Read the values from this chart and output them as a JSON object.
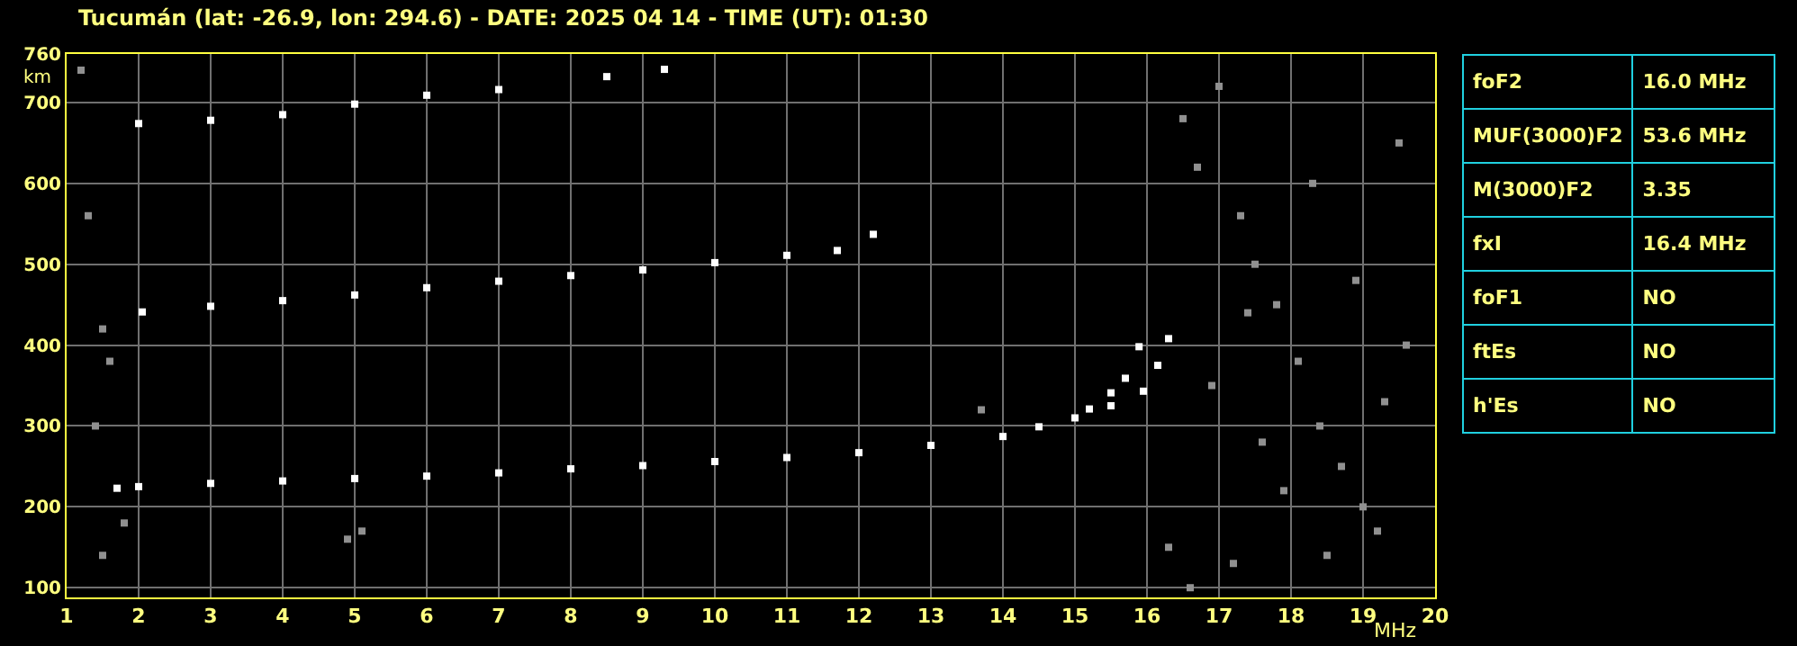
{
  "chart_data": [
    {
      "type": "scatter",
      "title": "Tucumán (lat: -26.9, lon: 294.6) - DATE: 2025 04 14 - TIME (UT): 01:30",
      "xlabel": "MHz",
      "ylabel": "km",
      "xlim": [
        1,
        20
      ],
      "ylim": [
        88,
        760
      ],
      "xticks": [
        1,
        2,
        3,
        4,
        5,
        6,
        7,
        8,
        9,
        10,
        11,
        12,
        13,
        14,
        15,
        16,
        17,
        18,
        19,
        20
      ],
      "yticks": [
        100,
        200,
        300,
        400,
        500,
        600,
        700,
        760
      ],
      "grid": true,
      "marker": "square",
      "series": [
        {
          "color": "#ffffff",
          "x": [
            1.7,
            2,
            3,
            4,
            5,
            6,
            7,
            8,
            9,
            10,
            11,
            12,
            13,
            14,
            14.5,
            15,
            15.2,
            15.5,
            15.7,
            15.89
          ],
          "values": [
            223,
            225,
            229,
            232,
            235,
            238,
            242,
            247,
            251,
            256,
            261,
            267,
            276,
            287,
            299,
            310,
            321,
            341,
            359,
            398
          ]
        },
        {
          "color": "#ffffff",
          "x": [
            15.5,
            15.95,
            16.15,
            16.3
          ],
          "values": [
            325,
            343,
            375,
            408
          ]
        },
        {
          "color": "#ffffff",
          "x": [
            2.05,
            3,
            4,
            5,
            6,
            7,
            8,
            9,
            10,
            11,
            11.7,
            12.2
          ],
          "values": [
            441,
            448,
            455,
            462,
            471,
            479,
            486,
            493,
            502,
            511,
            517,
            537
          ]
        },
        {
          "color": "#ffffff",
          "x": [
            2,
            3,
            4,
            5,
            6,
            7,
            8.5,
            9.3
          ],
          "values": [
            674,
            678,
            685,
            698,
            709,
            716,
            732,
            741
          ]
        },
        {
          "color": "#909090",
          "x": [
            1.2,
            1.3,
            1.5,
            1.6,
            1.4,
            1.8,
            1.5,
            4.9,
            5.1,
            13.7,
            16.3,
            16.5,
            16.7,
            17.0,
            17.3,
            17.5,
            17.8,
            18.1,
            18.4,
            18.7,
            19.0,
            19.2,
            19.5,
            16.9,
            17.6,
            18.3,
            18.9,
            19.6,
            17.2,
            18.5,
            17.9,
            19.3,
            16.6,
            17.4
          ],
          "values": [
            740,
            560,
            420,
            380,
            300,
            180,
            140,
            160,
            170,
            320,
            150,
            680,
            620,
            720,
            560,
            500,
            450,
            380,
            300,
            250,
            200,
            170,
            650,
            350,
            280,
            600,
            480,
            400,
            130,
            140,
            220,
            330,
            100,
            440
          ]
        }
      ]
    },
    {
      "type": "other",
      "annotations": [
        "foF2",
        "16.0 MHz",
        "MUF(3000)F2",
        "53.6 MHz",
        "M(3000)F2",
        "3.35",
        "fxI",
        "16.4 MHz",
        "foF1",
        "NO",
        "ftEs",
        "NO",
        "h'Es",
        "NO"
      ]
    }
  ]
}
